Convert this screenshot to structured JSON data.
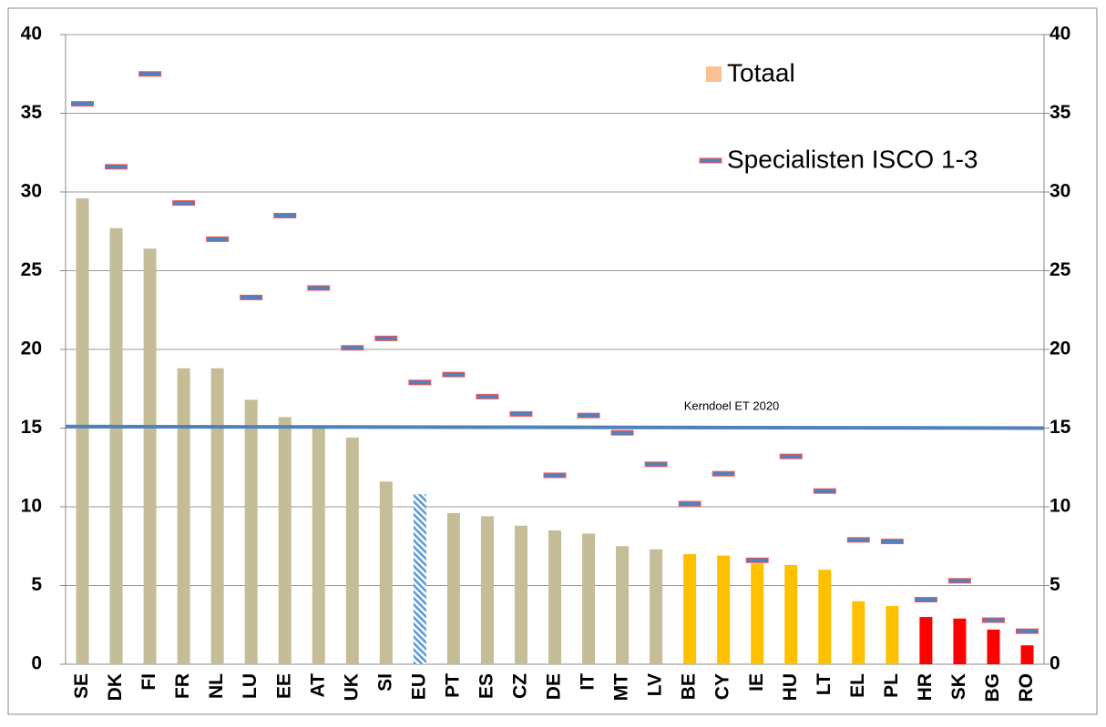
{
  "chart_data": {
    "type": "bar",
    "categories": [
      "SE",
      "DK",
      "FI",
      "FR",
      "NL",
      "LU",
      "EE",
      "AT",
      "UK",
      "SI",
      "EU",
      "PT",
      "ES",
      "CZ",
      "DE",
      "IT",
      "MT",
      "LV",
      "BE",
      "CY",
      "IE",
      "HU",
      "LT",
      "EL",
      "PL",
      "HR",
      "SK",
      "BG",
      "RO"
    ],
    "series": [
      {
        "name": "Totaal",
        "color": "#fac090",
        "kind": "bar",
        "bar_colors": [
          "#c4bd97",
          "#c4bd97",
          "#c4bd97",
          "#c4bd97",
          "#c4bd97",
          "#c4bd97",
          "#c4bd97",
          "#c4bd97",
          "#c4bd97",
          "#c4bd97",
          "#5b9bd5",
          "#c4bd97",
          "#c4bd97",
          "#c4bd97",
          "#c4bd97",
          "#c4bd97",
          "#c4bd97",
          "#c4bd97",
          "#ffc000",
          "#ffc000",
          "#ffc000",
          "#ffc000",
          "#ffc000",
          "#ffc000",
          "#ffc000",
          "#ff0000",
          "#ff0000",
          "#ff0000",
          "#ff0000"
        ],
        "bar_styles": [
          "solid",
          "solid",
          "solid",
          "solid",
          "solid",
          "solid",
          "solid",
          "solid",
          "solid",
          "solid",
          "hatched",
          "solid",
          "solid",
          "solid",
          "solid",
          "solid",
          "solid",
          "solid",
          "solid",
          "solid",
          "solid",
          "solid",
          "solid",
          "solid",
          "solid",
          "solid",
          "solid",
          "solid",
          "solid"
        ],
        "values": [
          29.6,
          27.7,
          26.4,
          18.8,
          18.8,
          16.8,
          15.7,
          15.0,
          14.4,
          11.6,
          10.8,
          9.6,
          9.4,
          8.8,
          8.5,
          8.3,
          7.5,
          7.3,
          7.0,
          6.9,
          6.4,
          6.3,
          6.0,
          4.0,
          3.7,
          3.0,
          2.9,
          2.2,
          1.2
        ]
      },
      {
        "name": "Specialisten ISCO 1-3",
        "color": "#4f81bd",
        "outline": "#ff5050",
        "kind": "marker",
        "values": [
          35.6,
          31.6,
          37.5,
          29.3,
          27.0,
          23.3,
          28.5,
          23.9,
          20.1,
          20.7,
          17.9,
          18.4,
          17.0,
          15.9,
          12.0,
          15.8,
          14.7,
          12.7,
          10.2,
          12.1,
          6.6,
          13.2,
          11.0,
          7.9,
          7.8,
          4.1,
          5.3,
          2.8,
          2.1
        ]
      }
    ],
    "reference_line": {
      "label": "Kerndoel ET 2020",
      "values": [
        15.1,
        15.0
      ],
      "color": "#4f81bd"
    },
    "ylim": [
      0,
      40
    ],
    "yticks": [
      0,
      5,
      10,
      15,
      20,
      25,
      30,
      35,
      40
    ],
    "y2lim": [
      0,
      40
    ],
    "y2ticks": [
      0,
      5,
      10,
      15,
      20,
      25,
      30,
      35,
      40
    ],
    "grid": true,
    "legend": "top-right"
  }
}
